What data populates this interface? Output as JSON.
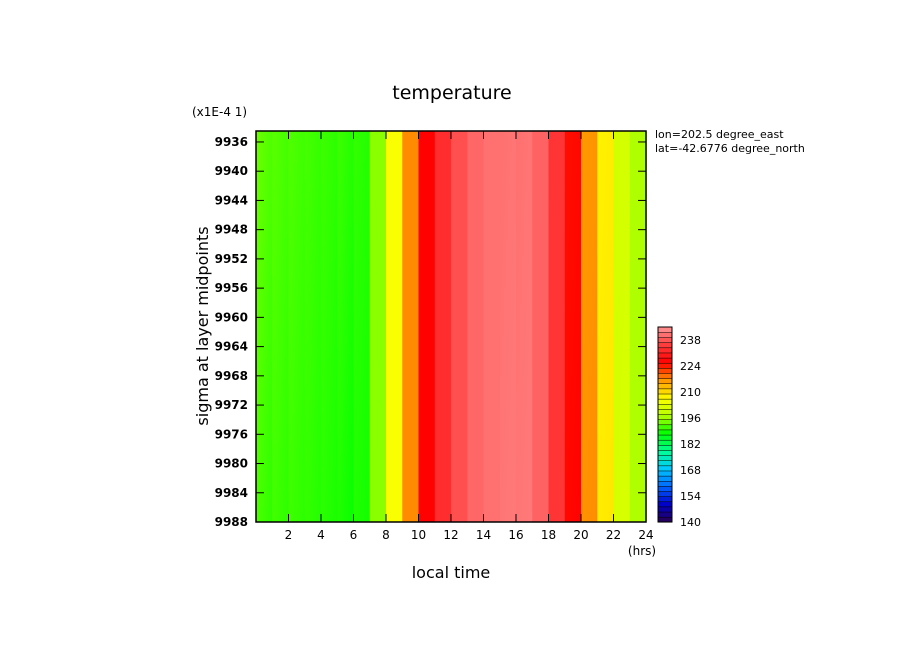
{
  "chart_data": {
    "type": "heatmap",
    "title": "temperature",
    "xlabel": "local time",
    "ylabel": "sigma at layer midpoints",
    "x_unit": "(hrs)",
    "y_scale_note": "(x1E-4 1)",
    "annotations": [
      "lon=202.5 degree_east",
      "lat=-42.6776 degree_north"
    ],
    "x_ticks": [
      2,
      4,
      6,
      8,
      10,
      12,
      14,
      16,
      18,
      20,
      22,
      24
    ],
    "y_ticks": [
      9936,
      9940,
      9944,
      9948,
      9952,
      9956,
      9960,
      9964,
      9968,
      9972,
      9976,
      9980,
      9984,
      9988
    ],
    "xlim": [
      0,
      24
    ],
    "ylim": [
      9988,
      9934.5
    ],
    "x_hours": [
      0,
      1,
      2,
      3,
      4,
      5,
      6,
      7,
      8,
      9,
      10,
      11,
      12,
      13,
      14,
      15,
      16,
      17,
      18,
      19,
      20,
      21,
      22,
      23,
      24
    ],
    "temperature_at_top": [
      194,
      193,
      192,
      192,
      191,
      191,
      191,
      190,
      200,
      212,
      222,
      230,
      236,
      239,
      241,
      241,
      241,
      241,
      238,
      230,
      220,
      212,
      204,
      198,
      196
    ],
    "temperature_at_bottom": [
      190,
      190,
      190,
      190,
      189,
      189,
      187,
      190,
      200,
      212,
      222,
      230,
      236,
      239,
      241,
      241,
      243,
      241,
      238,
      231,
      221,
      213,
      205,
      199,
      195
    ],
    "colorbar": {
      "ticks": [
        140,
        154,
        168,
        182,
        196,
        210,
        224,
        238
      ],
      "range": [
        140,
        245
      ],
      "colors": [
        "#2a0050",
        "#0000c8",
        "#0064ff",
        "#00c8ff",
        "#00ff96",
        "#00ff00",
        "#b4ff00",
        "#ffff00",
        "#ff9600",
        "#ff0000",
        "#ff3c3c",
        "#ff9696"
      ]
    }
  }
}
